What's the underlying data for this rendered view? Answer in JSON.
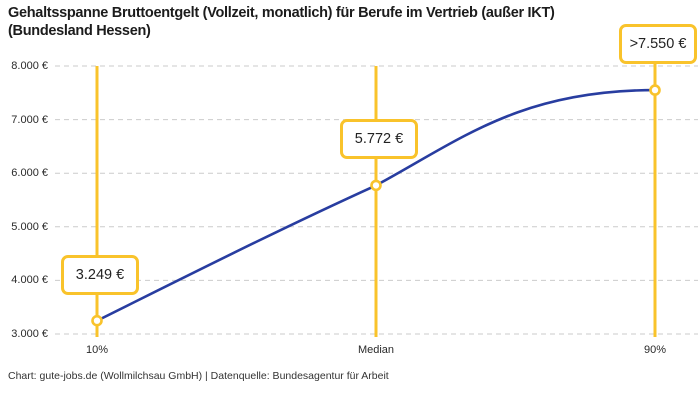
{
  "title": {
    "line1": "Gehaltsspanne Bruttoentgelt (Vollzeit, monatlich) für Berufe im Vertrieb (außer IKT)",
    "line2": "(Bundesland Hessen)"
  },
  "footer": "Chart: gute-jobs.de (Wollmilchsau GmbH) | Datenquelle: Bundesagentur für Arbeit",
  "colors": {
    "accent_yellow": "#F9C32B",
    "line_blue": "#283DA0",
    "grid_gray": "#CBCBCB",
    "text_dark": "#222222"
  },
  "chart_data": {
    "type": "line",
    "title": "Gehaltsspanne Bruttoentgelt (Vollzeit, monatlich) für Berufe im Vertrieb (außer IKT) (Bundesland Hessen)",
    "x_categories": [
      "10%",
      "Median",
      "90%"
    ],
    "values": [
      3249,
      5772,
      7550
    ],
    "value_labels": [
      "3.249 €",
      "5.772 €",
      ">7.550 €"
    ],
    "y_ticks": [
      {
        "value": 3000,
        "label": "3.000 €"
      },
      {
        "value": 4000,
        "label": "4.000 €"
      },
      {
        "value": 5000,
        "label": "5.000 €"
      },
      {
        "value": 6000,
        "label": "6.000 €"
      },
      {
        "value": 7000,
        "label": "7.000 €"
      },
      {
        "value": 8000,
        "label": "8.000 €"
      }
    ],
    "ylim": [
      3000,
      8000
    ],
    "xlabel": "",
    "ylabel": "",
    "grid": "horizontal-dashed",
    "legend": "none",
    "marker_style": "open-circle-on-vertical-highlight-line"
  }
}
